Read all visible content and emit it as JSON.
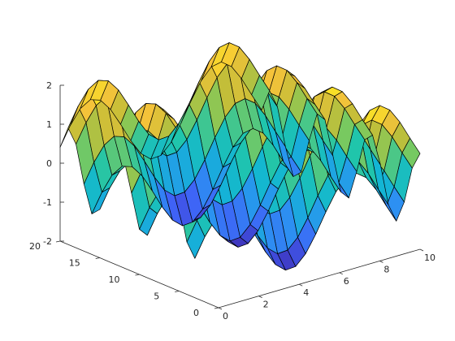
{
  "chart_data": {
    "type": "surface",
    "function": "z = sin(x) + cos(y)",
    "x": [
      0,
      0.5,
      1,
      1.5,
      2,
      2.5,
      3,
      3.5,
      4,
      4.5,
      5,
      5.5,
      6,
      6.5,
      7,
      7.5,
      8,
      8.5,
      9,
      9.5,
      10
    ],
    "y": [
      0,
      1,
      2,
      3,
      4,
      5,
      6,
      7,
      8,
      9,
      10,
      11,
      12,
      13,
      14,
      15,
      16,
      17,
      18,
      19,
      20
    ],
    "xlim": [
      0,
      10
    ],
    "ylim": [
      0,
      20
    ],
    "zlim": [
      -2,
      2
    ],
    "x_ticks": [
      0,
      2,
      4,
      6,
      8,
      10
    ],
    "y_ticks": [
      0,
      5,
      10,
      15,
      20
    ],
    "z_ticks": [
      -2,
      -1,
      0,
      1,
      2
    ],
    "x_tick_labels": [
      "0",
      "2",
      "4",
      "6",
      "8",
      "10"
    ],
    "y_tick_labels": [
      "0",
      "5",
      "10",
      "15",
      "20"
    ],
    "z_tick_labels": [
      "-2",
      "-1",
      "0",
      "1",
      "2"
    ],
    "colormap": [
      "#3e26a8",
      "#4060f6",
      "#2c91f2",
      "#13b5d4",
      "#20c5ab",
      "#7dc95c",
      "#c4be38",
      "#f6c33a",
      "#f9fb15"
    ],
    "edge_color": "#000000",
    "grid": false,
    "title": "",
    "xlabel": "",
    "ylabel": "",
    "zlabel": ""
  }
}
